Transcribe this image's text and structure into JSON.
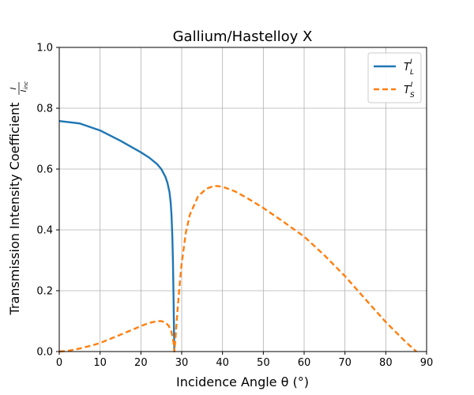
{
  "chart_data": {
    "type": "line",
    "title": "Gallium/Hastelloy X",
    "xlabel": "Incidence Angle θ (°)",
    "ylabel": "Transmission Intensity Coefficient I/Iinc",
    "ylabel_main": "Transmission Intensity Coefficient",
    "ylabel_frac_num": "I",
    "ylabel_frac_den": "I",
    "ylabel_frac_den_sub": "inc",
    "xlim": [
      0,
      90
    ],
    "ylim": [
      0,
      1.0
    ],
    "xticks": [
      "0",
      "10",
      "20",
      "30",
      "40",
      "50",
      "60",
      "70",
      "80",
      "90"
    ],
    "yticks": [
      "0.0",
      "0.2",
      "0.4",
      "0.6",
      "0.8",
      "1.0"
    ],
    "grid": true,
    "legend_position": "top-right",
    "series": [
      {
        "name": "T_L^I",
        "legend_base": "T",
        "legend_sub": "L",
        "legend_sup": "I",
        "color": "#1f77b4",
        "style": "solid",
        "x": [
          0,
          5,
          10,
          15,
          20,
          22,
          24,
          25,
          26,
          26.5,
          27,
          27.3,
          27.5,
          27.7,
          27.85,
          28,
          28.1,
          28.2
        ],
        "y": [
          0.758,
          0.75,
          0.727,
          0.693,
          0.655,
          0.638,
          0.616,
          0.6,
          0.575,
          0.555,
          0.525,
          0.49,
          0.45,
          0.38,
          0.3,
          0.18,
          0.08,
          0.0
        ]
      },
      {
        "name": "T_S^I",
        "legend_base": "T",
        "legend_sub": "S",
        "legend_sup": "I",
        "color": "#ff7f0e",
        "style": "dashed",
        "x": [
          0,
          2,
          5,
          8,
          10,
          14,
          18,
          20,
          22,
          24,
          25,
          26,
          26.8,
          27.5,
          28,
          28.2,
          28.5,
          29,
          29.5,
          30,
          31,
          32,
          34,
          36,
          38,
          40,
          43,
          46,
          50,
          55,
          60,
          65,
          70,
          75,
          80,
          85,
          87.5
        ],
        "y": [
          0.0,
          0.002,
          0.01,
          0.02,
          0.028,
          0.05,
          0.072,
          0.084,
          0.094,
          0.1,
          0.1,
          0.096,
          0.085,
          0.065,
          0.03,
          0.0,
          0.05,
          0.14,
          0.22,
          0.29,
          0.39,
          0.45,
          0.51,
          0.535,
          0.545,
          0.542,
          0.527,
          0.505,
          0.472,
          0.426,
          0.378,
          0.316,
          0.248,
          0.172,
          0.097,
          0.03,
          0.0
        ]
      }
    ]
  }
}
